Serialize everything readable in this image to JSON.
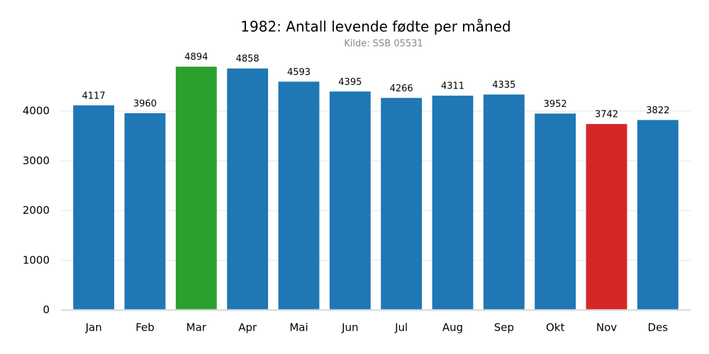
{
  "chart_data": {
    "type": "bar",
    "title": "1982: Antall levende fødte per måned",
    "subtitle": "Kilde: SSB 05531",
    "categories": [
      "Jan",
      "Feb",
      "Mar",
      "Apr",
      "Mai",
      "Jun",
      "Jul",
      "Aug",
      "Sep",
      "Okt",
      "Nov",
      "Des"
    ],
    "values": [
      4117,
      3960,
      4894,
      4858,
      4593,
      4395,
      4266,
      4311,
      4335,
      3952,
      3742,
      3822
    ],
    "colors": [
      "#1f77b4",
      "#1f77b4",
      "#2ca02c",
      "#1f77b4",
      "#1f77b4",
      "#1f77b4",
      "#1f77b4",
      "#1f77b4",
      "#1f77b4",
      "#1f77b4",
      "#d62728",
      "#1f77b4"
    ],
    "ylim": [
      0,
      5200
    ],
    "yticks": [
      0,
      1000,
      2000,
      3000,
      4000
    ],
    "grid": true
  }
}
